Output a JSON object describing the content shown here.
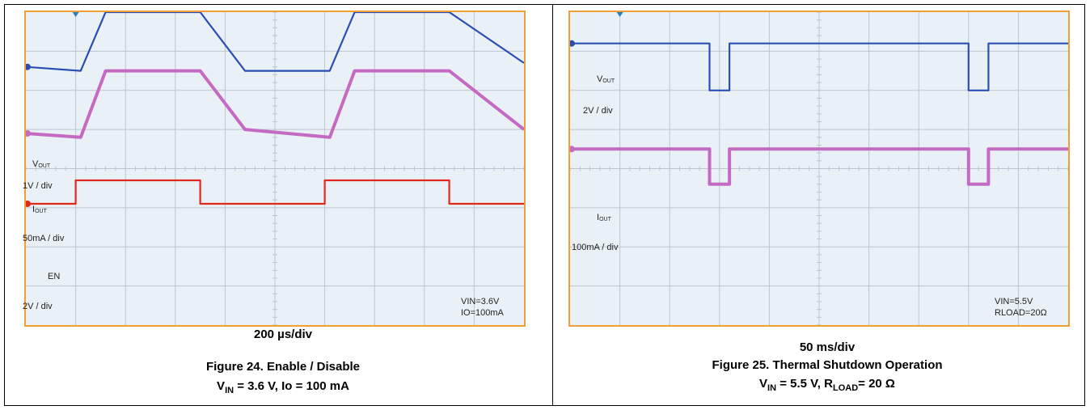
{
  "panels": [
    {
      "id": "left",
      "timebase": "200 µs/div",
      "figure_title": "Figure 24. Enable / Disable",
      "cond_v": "V",
      "cond_v_sub": "IN",
      "cond_rest": " = 3.6 V, Io = 100 mA",
      "labels": {
        "vout": "V",
        "vout_sub": "OUT",
        "vout_scale": "1V / div",
        "iout": "I",
        "iout_sub": "OUT",
        "iout_scale": "50mA / div",
        "en": "EN",
        "en_scale": "2V / div",
        "note1": "VIN=3.6V",
        "note2": "IO=100mA"
      }
    },
    {
      "id": "right",
      "timebase": "50 ms/div",
      "figure_title": "Figure 25. Thermal Shutdown Operation",
      "cond_v": "V",
      "cond_v_sub": "IN",
      "cond_mid": " = 5.5 V, R",
      "cond_r_sub": "LOAD",
      "cond_end": "= 20 Ω",
      "labels": {
        "vout": "V",
        "vout_sub": "OUT",
        "vout_scale": "2V / div",
        "iout": "I",
        "iout_sub": "OUT",
        "iout_scale": "100mA / div",
        "note1": "VIN=5.5V",
        "note2": "RLOAD=20Ω"
      }
    }
  ],
  "colors": {
    "vout": "#2a4fb4",
    "iout": "#c46ac2",
    "en": "#e0281c",
    "screen_bg": "#eaf1f6",
    "grid": "#b9c6d2",
    "frame": "#f0a033"
  },
  "chart_data": [
    {
      "type": "line",
      "grid_divisions": [
        10,
        8
      ],
      "x_unit": "div",
      "series": [
        {
          "name": "VOUT",
          "x": [
            0,
            1.1,
            1.6,
            3.5,
            4.4,
            6.1,
            6.6,
            8.5,
            10
          ],
          "y": [
            6.6,
            6.5,
            8.0,
            8.0,
            6.5,
            6.5,
            8.0,
            8.0,
            6.7
          ]
        },
        {
          "name": "IOUT",
          "x": [
            0,
            1.1,
            1.6,
            3.5,
            4.4,
            6.1,
            6.6,
            8.5,
            10
          ],
          "y": [
            4.9,
            4.8,
            6.5,
            6.5,
            5.0,
            4.8,
            6.5,
            6.5,
            5.0
          ]
        },
        {
          "name": "EN",
          "x": [
            0,
            1.0,
            1.0,
            3.5,
            3.5,
            6.0,
            6.0,
            8.5,
            8.5,
            10
          ],
          "y": [
            3.1,
            3.1,
            3.7,
            3.7,
            3.1,
            3.1,
            3.7,
            3.7,
            3.1,
            3.1
          ]
        }
      ]
    },
    {
      "type": "line",
      "grid_divisions": [
        10,
        8
      ],
      "x_unit": "div",
      "series": [
        {
          "name": "VOUT",
          "x": [
            0,
            2.8,
            2.8,
            3.2,
            3.2,
            8.0,
            8.0,
            8.4,
            8.4,
            10
          ],
          "y": [
            7.2,
            7.2,
            6.0,
            6.0,
            7.2,
            7.2,
            6.0,
            6.0,
            7.2,
            7.2
          ]
        },
        {
          "name": "IOUT",
          "x": [
            0,
            2.8,
            2.8,
            3.2,
            3.2,
            8.0,
            8.0,
            8.4,
            8.4,
            10
          ],
          "y": [
            4.5,
            4.5,
            3.6,
            3.6,
            4.5,
            4.5,
            3.6,
            3.6,
            4.5,
            4.5
          ]
        }
      ]
    }
  ]
}
